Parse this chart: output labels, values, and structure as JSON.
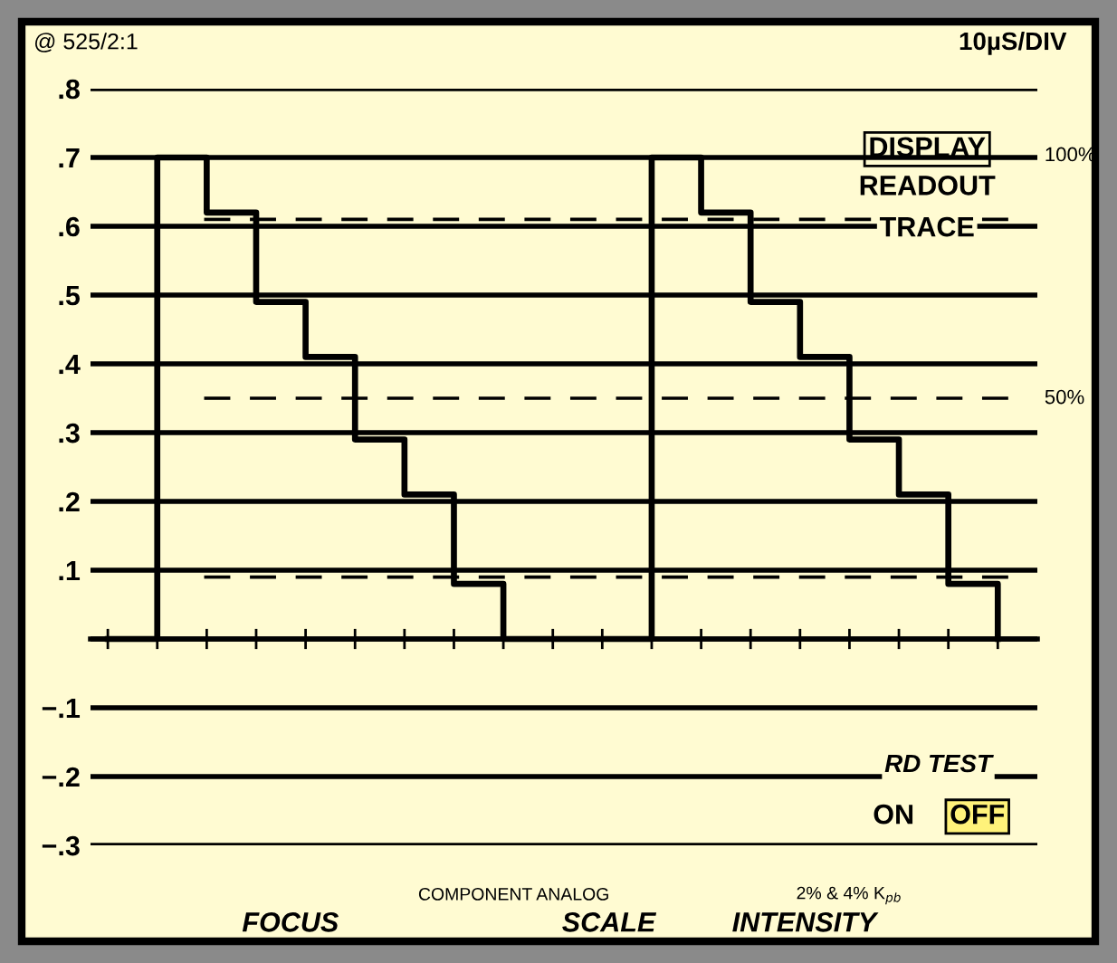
{
  "chart_data": {
    "type": "step",
    "categories": [
      null,
      null,
      null,
      null,
      null,
      null,
      null,
      null,
      null,
      null,
      null,
      null,
      null,
      null,
      null,
      null,
      null,
      null,
      null
    ],
    "series": [
      {
        "color": "#000000",
        "values": [
          0,
          0.7,
          0.62,
          0.49,
          0.41,
          0.29,
          0.21,
          0.08,
          0,
          0,
          0,
          0.7,
          0.62,
          0.49,
          0.41,
          0.29,
          0.21,
          0.08,
          0
        ]
      }
    ],
    "ylim": [
      -0.3,
      0.8
    ],
    "yticks": [
      {
        "value": 0.8,
        "label": ".8"
      },
      {
        "value": 0.7,
        "label": ".7"
      },
      {
        "value": 0.6,
        "label": ".6"
      },
      {
        "value": 0.5,
        "label": ".5"
      },
      {
        "value": 0.4,
        "label": ".4"
      },
      {
        "value": 0.3,
        "label": ".3"
      },
      {
        "value": 0.2,
        "label": ".2"
      },
      {
        "value": 0.1,
        "label": ".1"
      },
      {
        "value": 0,
        "label": null
      },
      {
        "value": -0.1,
        "label": "−.1"
      },
      {
        "value": -0.2,
        "label": "−.2"
      },
      {
        "value": -0.3,
        "label": "−.3"
      }
    ],
    "tick_labels": "y",
    "grid": "y",
    "line_style": "solid",
    "marker": "none",
    "ref_lines": [
      {
        "axis": "y",
        "value": 0.35,
        "line_style": "dashed",
        "color": "#000000"
      },
      {
        "axis": "y",
        "value": 0.61,
        "line_style": "dashed",
        "color": "#000000"
      },
      {
        "axis": "y",
        "value": 0.09,
        "line_style": "dashed",
        "color": "#000000"
      }
    ],
    "annotations": [
      "@ 525/2:1",
      "10µS/DIV",
      "DISPLAY",
      "READOUT",
      "TRACE",
      "RD TEST",
      "ON",
      "OFF",
      "COMPONENT ANALOG",
      "2% & 4% K$_{pb}$",
      "FOCUS",
      "SCALE",
      "INTENSITY",
      "100%",
      "50%"
    ]
  }
}
